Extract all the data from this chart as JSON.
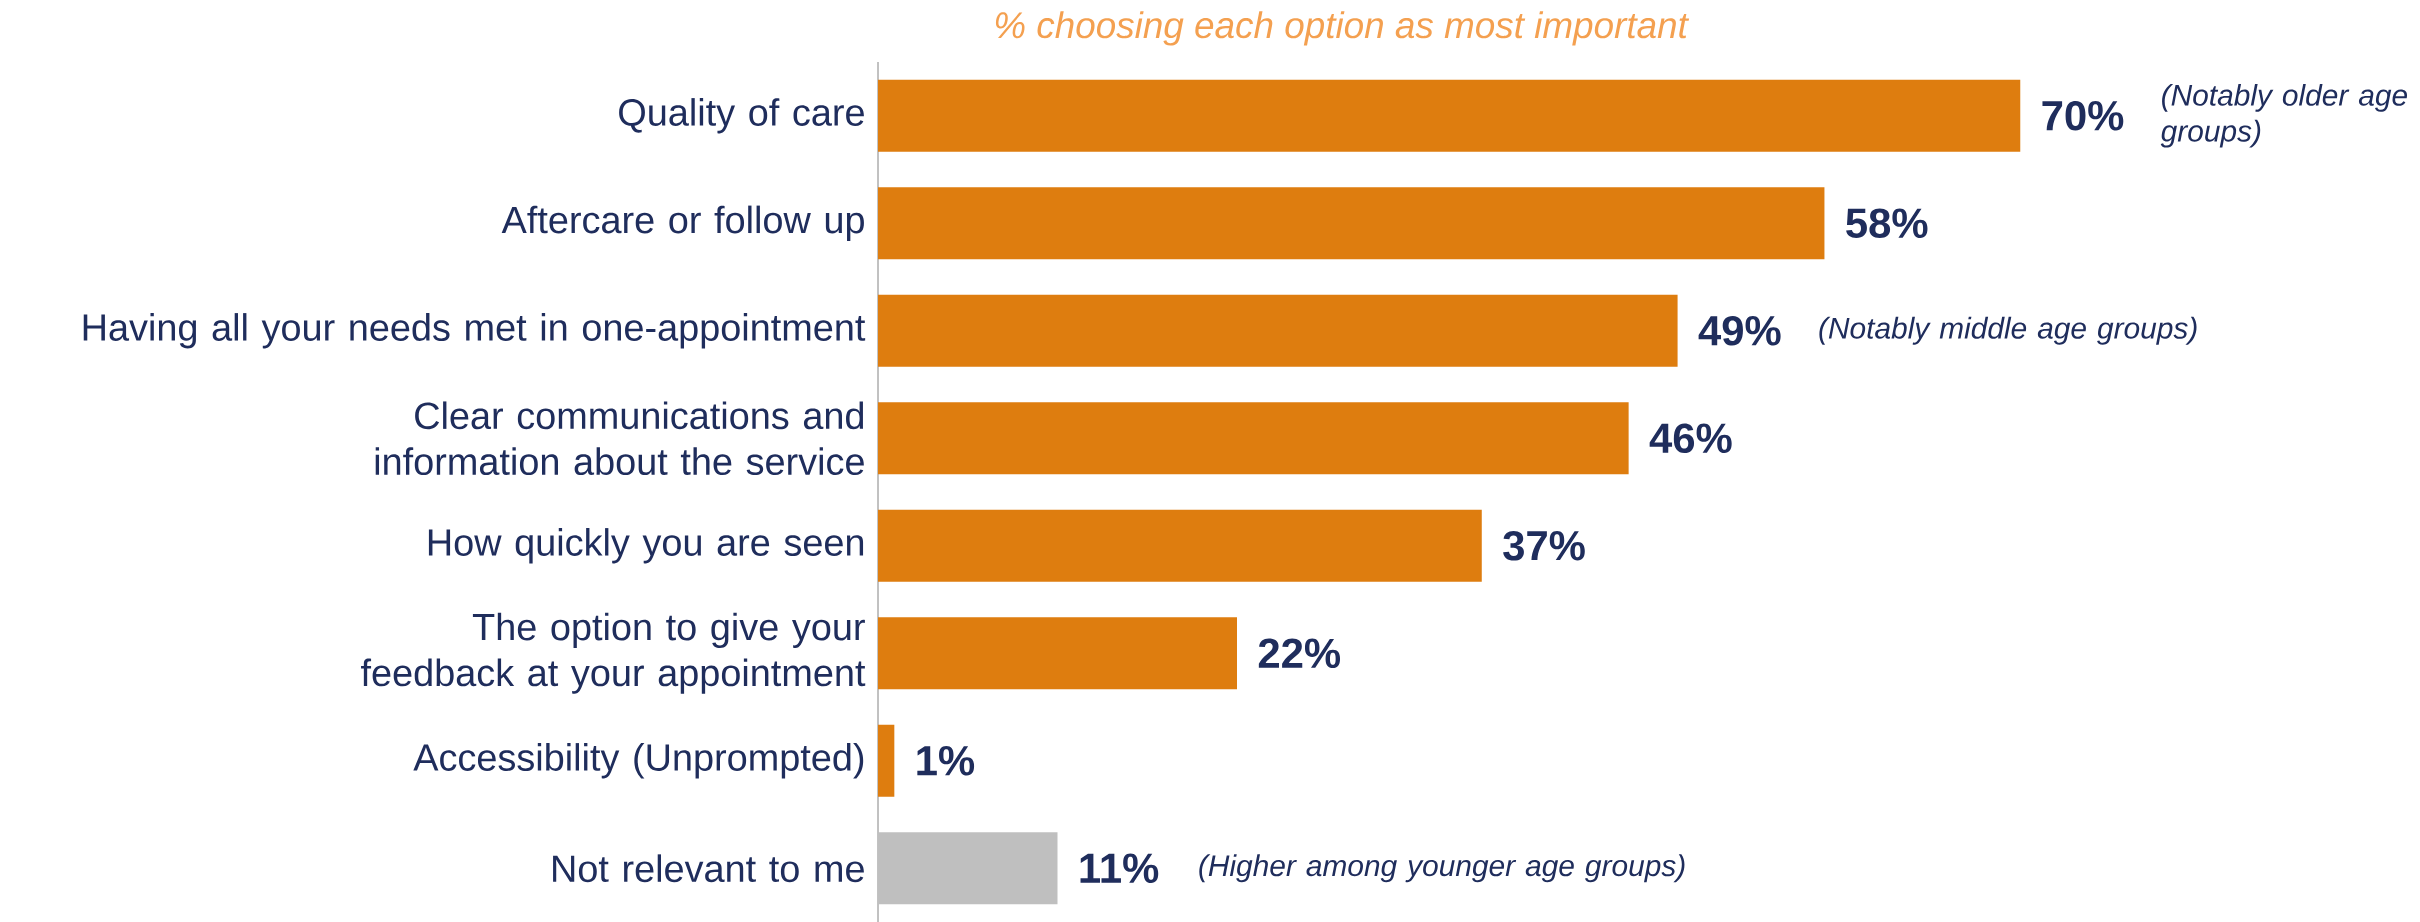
{
  "chart_data": {
    "type": "bar",
    "orientation": "horizontal",
    "title": "% choosing each option as most important",
    "categories": [
      "Quality of care",
      "Aftercare or follow up",
      "Having all your needs met in one-appointment",
      "Clear communications and information about the service",
      "How quickly you are seen",
      "The option to give your feedback at your appointment",
      "Accessibility (Unprompted)",
      "Not relevant to me"
    ],
    "values": [
      70,
      58,
      49,
      46,
      37,
      22,
      1,
      11
    ],
    "colors": [
      "#de7d0f",
      "#de7d0f",
      "#de7d0f",
      "#de7d0f",
      "#de7d0f",
      "#de7d0f",
      "#de7d0f",
      "#bfbfbf"
    ],
    "value_labels": [
      "70%",
      "58%",
      "49%",
      "46%",
      "37%",
      "22%",
      "1%",
      "11%"
    ],
    "annotations": [
      "(Notably older age groups)",
      "(Notably middle age groups)",
      "(Higher among younger age groups)"
    ]
  }
}
